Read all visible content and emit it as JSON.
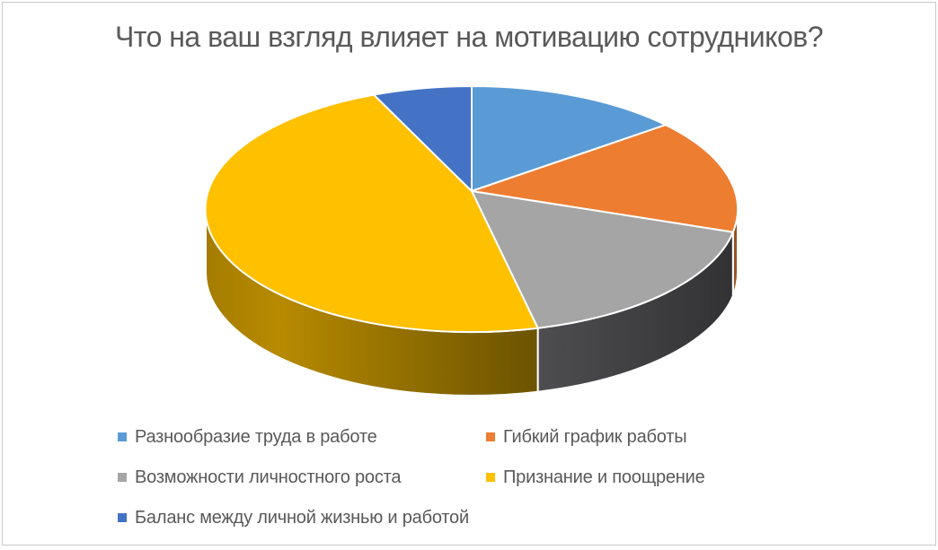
{
  "frame": {
    "background": "#ffffff",
    "border_color": "#c9c9c9"
  },
  "chart_data": {
    "type": "pie",
    "is_3d": true,
    "title": "Что на ваш взгляд влияет на мотивацию сотрудников?",
    "title_color": "#595959",
    "direction": "clockwise",
    "start_angle_deg_from_top": 0,
    "legend_position": "bottom",
    "data_labels_shown": false,
    "slices": [
      {
        "label": "Разнообразие труда в работе",
        "value": 13,
        "color": "#5B9BD5",
        "side_colors": [
          "#3e68b2",
          "#2f5293"
        ]
      },
      {
        "label": "Гибкий график работы",
        "value": 15,
        "color": "#ED7D31",
        "side_colors": [
          "#a35a23",
          "#8f4d1e"
        ]
      },
      {
        "label": "Возможности личностного роста",
        "value": 18,
        "color": "#A5A5A5",
        "side_colors": [
          "#4e4e50",
          "#323234"
        ]
      },
      {
        "label": "Признание и поощрение",
        "value": 48,
        "color": "#FFC000",
        "side_colors": [
          "#a57c00",
          "#b78a00",
          "#6b5300"
        ]
      },
      {
        "label": "Баланс между личной жизнью и работой",
        "value": 6,
        "color": "#4472C4",
        "side_colors": [
          "#2f55a0",
          "#27488a"
        ]
      }
    ],
    "legend_text_color": "#595959"
  }
}
